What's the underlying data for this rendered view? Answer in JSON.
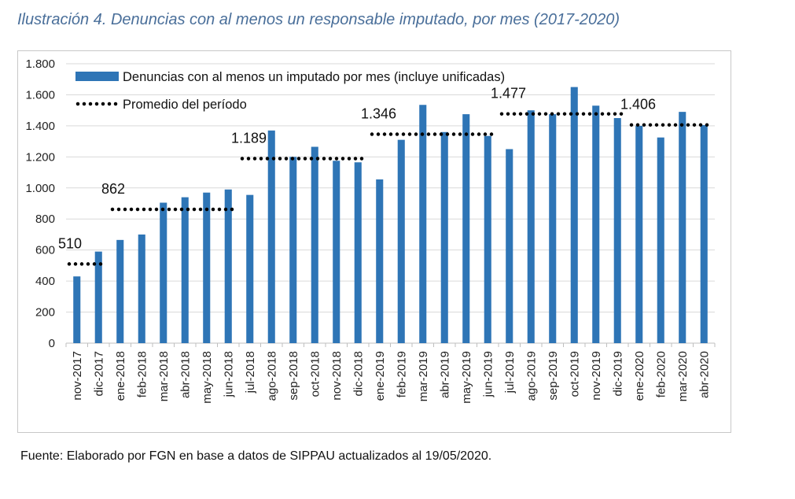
{
  "caption": "Ilustración 4. Denuncias con al menos un responsable imputado, por mes (2017-2020)",
  "source": "Fuente:  Elaborado por FGN en base a datos de SIPPAU actualizados al 19/05/2020.",
  "chart_data": {
    "type": "bar",
    "categories": [
      "nov-2017",
      "dic-2017",
      "ene-2018",
      "feb-2018",
      "mar-2018",
      "abr-2018",
      "may-2018",
      "jun-2018",
      "jul-2018",
      "ago-2018",
      "sep-2018",
      "oct-2018",
      "nov-2018",
      "dic-2018",
      "ene-2019",
      "feb-2019",
      "mar-2019",
      "abr-2019",
      "may-2019",
      "jun-2019",
      "jul-2019",
      "ago-2019",
      "sep-2019",
      "oct-2019",
      "nov-2019",
      "dic-2019",
      "ene-2020",
      "feb-2020",
      "mar-2020",
      "abr-2020"
    ],
    "series": [
      {
        "name": "Denuncias con al menos un imputado por mes (incluye unificadas)",
        "color": "#2e75b6",
        "values": [
          430,
          590,
          665,
          700,
          905,
          940,
          970,
          990,
          955,
          1370,
          1200,
          1265,
          1175,
          1165,
          1055,
          1310,
          1535,
          1360,
          1475,
          1335,
          1250,
          1500,
          1475,
          1650,
          1530,
          1450,
          1400,
          1325,
          1490,
          1405
        ]
      }
    ],
    "averages": {
      "name": "Promedio del período",
      "segments": [
        {
          "from": "nov-2017",
          "to": "dic-2017",
          "value": 510,
          "label": "510"
        },
        {
          "from": "ene-2018",
          "to": "jun-2018",
          "value": 862,
          "label": "862"
        },
        {
          "from": "jul-2018",
          "to": "dic-2018",
          "value": 1189,
          "label": "1.189"
        },
        {
          "from": "ene-2019",
          "to": "jun-2019",
          "value": 1346,
          "label": "1.346"
        },
        {
          "from": "jul-2019",
          "to": "dic-2019",
          "value": 1477,
          "label": "1.477"
        },
        {
          "from": "ene-2020",
          "to": "abr-2020",
          "value": 1406,
          "label": "1.406"
        }
      ]
    },
    "ylim": [
      0,
      1800
    ],
    "yticks": [
      0,
      200,
      400,
      600,
      800,
      1000,
      1200,
      1400,
      1600,
      1800
    ],
    "ytick_labels": [
      "0",
      "200",
      "400",
      "600",
      "800",
      "1.000",
      "1.200",
      "1.400",
      "1.600",
      "1.800"
    ],
    "grid": true,
    "legend_position": "top-left"
  }
}
